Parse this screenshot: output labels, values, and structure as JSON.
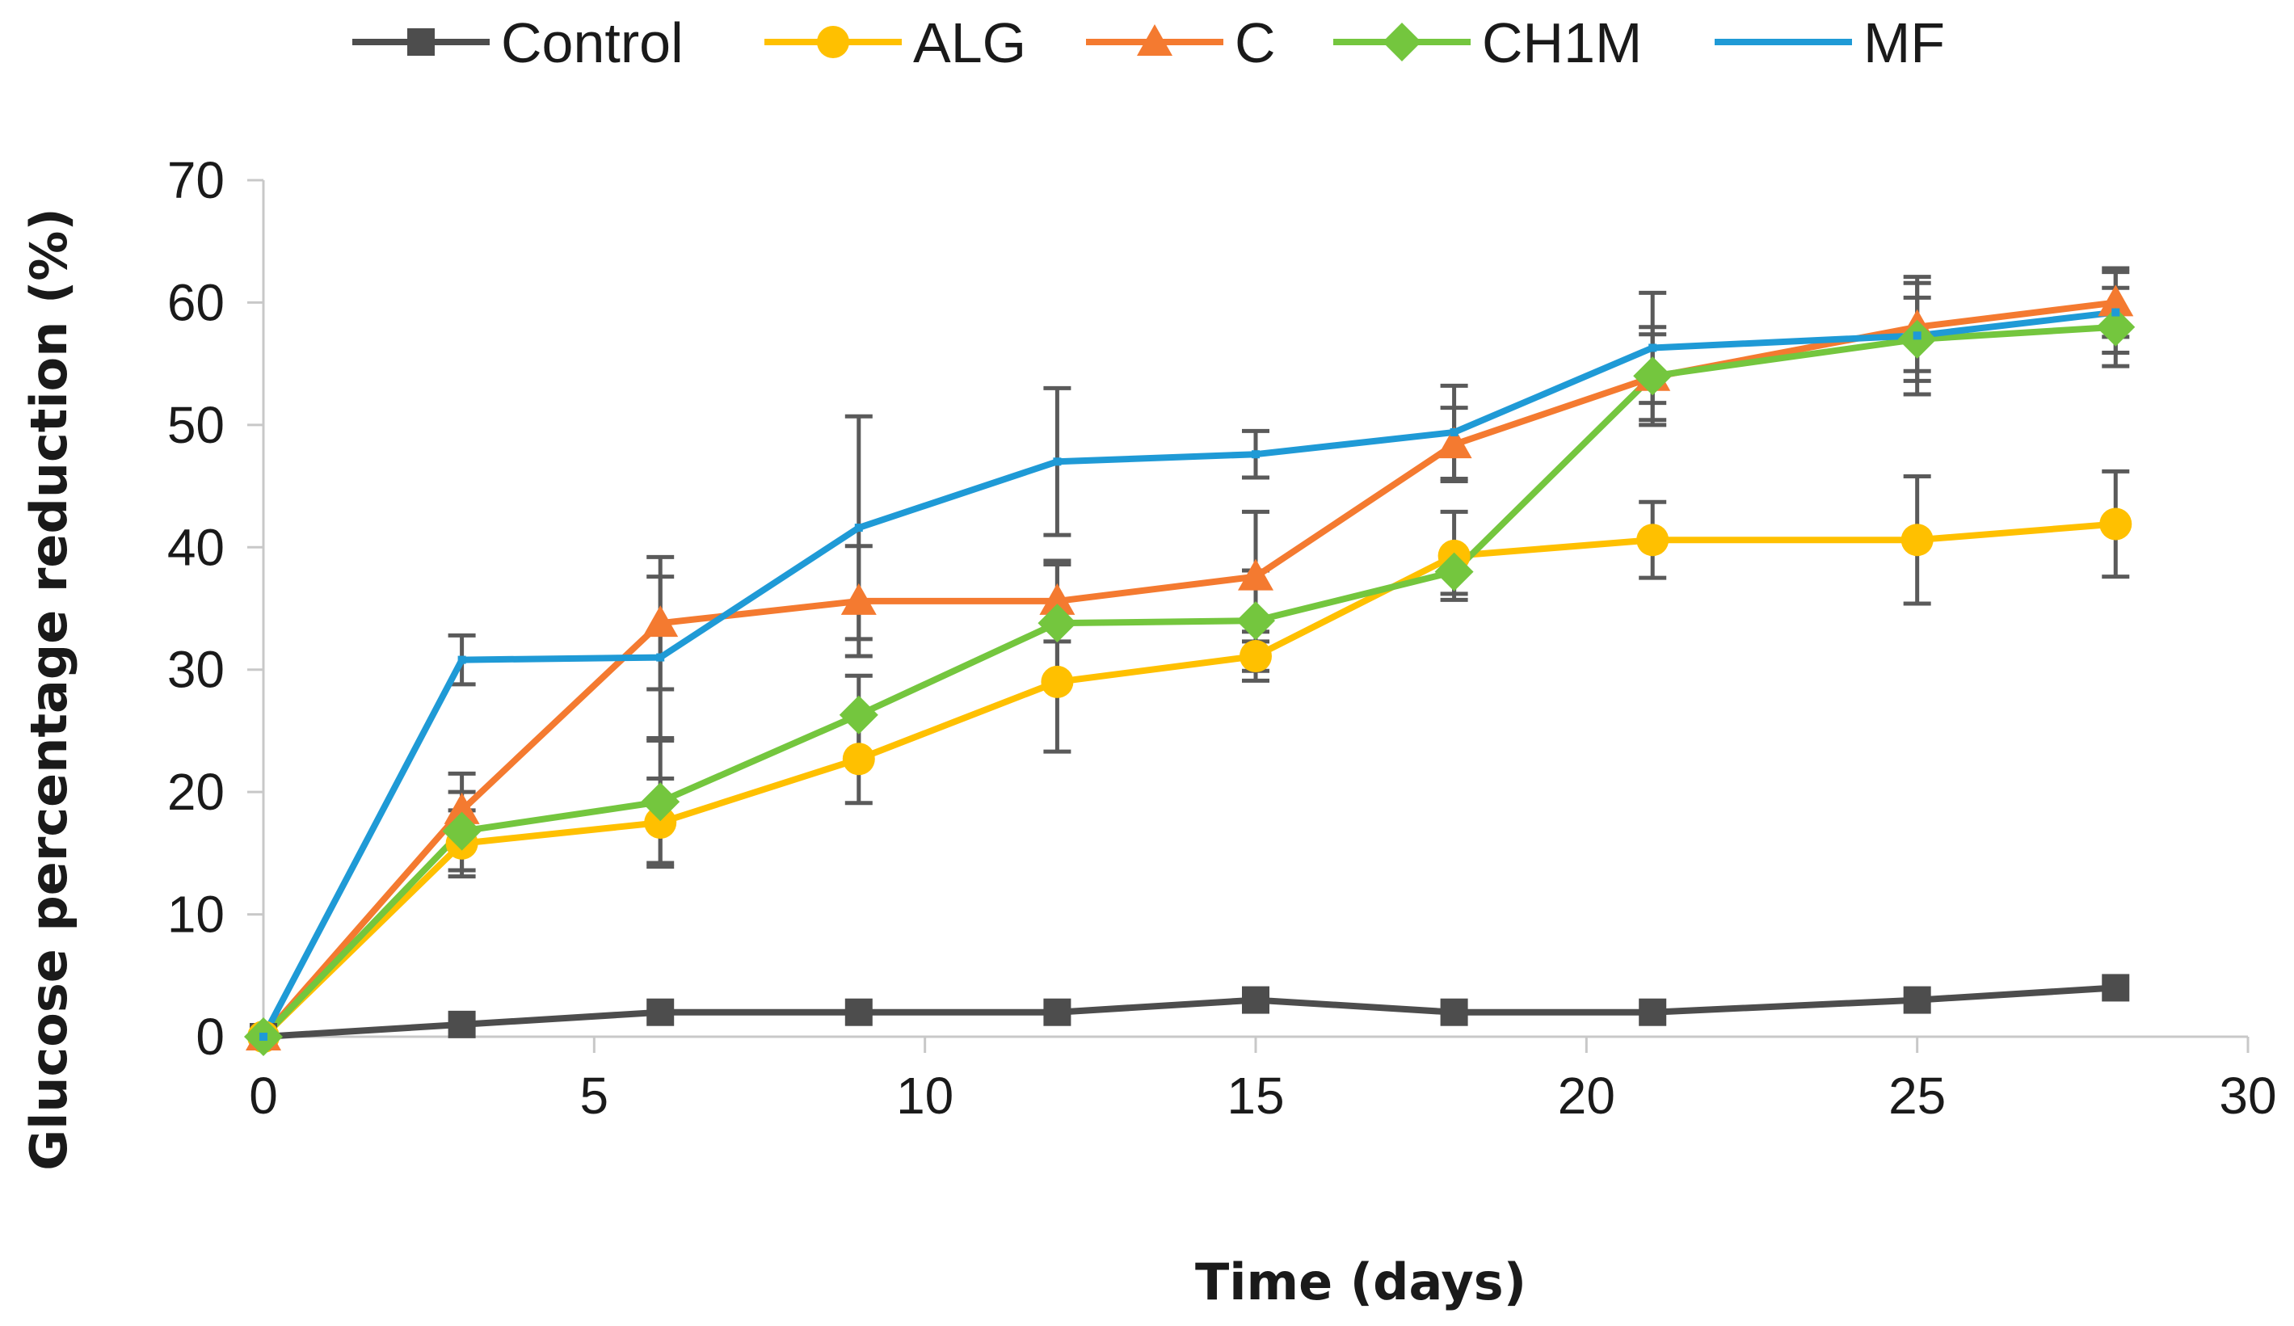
{
  "chart_data": {
    "type": "line",
    "title": "",
    "xlabel": "Time (days)",
    "ylabel": "Glucose percentage reduction (%)",
    "xlim": [
      0,
      30
    ],
    "ylim": [
      0,
      70
    ],
    "xticks": [
      0,
      5,
      10,
      15,
      20,
      25,
      30
    ],
    "yticks": [
      0,
      10,
      20,
      30,
      40,
      50,
      60,
      70
    ],
    "grid": false,
    "legend_position": "top",
    "x": [
      0,
      3,
      6,
      9,
      12,
      15,
      18,
      21,
      25,
      28
    ],
    "series": [
      {
        "name": "Control",
        "color": "#4d4d4d",
        "marker": "square",
        "values": [
          0,
          1,
          2,
          2,
          2,
          3,
          2,
          2,
          3,
          4
        ],
        "errors": [
          0,
          0,
          0,
          0,
          0,
          0,
          0,
          0,
          0,
          0
        ]
      },
      {
        "name": "ALG",
        "color": "#ffc000",
        "marker": "circle",
        "values": [
          0,
          15.8,
          17.5,
          22.7,
          29,
          31.1,
          39.3,
          40.6,
          40.6,
          41.9
        ],
        "errors": [
          0,
          2.7,
          3.6,
          3.6,
          5.7,
          2,
          3.6,
          3.1,
          5.2,
          4.3
        ]
      },
      {
        "name": "C",
        "color": "#f47a30",
        "marker": "triangle",
        "values": [
          0,
          18.5,
          33.8,
          35.6,
          35.6,
          37.6,
          48.4,
          53.9,
          58,
          60
        ],
        "errors": [
          0,
          3,
          5.4,
          4.5,
          3.3,
          5.3,
          3,
          3.5,
          3.6,
          2.8
        ]
      },
      {
        "name": "CH1M",
        "color": "#74c63e",
        "marker": "diamond",
        "values": [
          0,
          16.8,
          19.2,
          26.3,
          33.8,
          34,
          38,
          54,
          57,
          58
        ],
        "errors": [
          0,
          3.2,
          5,
          3.2,
          4.8,
          4.1,
          1.8,
          4,
          3.4,
          3.2
        ]
      },
      {
        "name": "MF",
        "color": "#1f9ad6",
        "marker": "line",
        "values": [
          0,
          30.8,
          31,
          41.6,
          47,
          47.6,
          49.4,
          56.3,
          57.3,
          59.2
        ],
        "errors": [
          0,
          2,
          6.6,
          9.1,
          6,
          1.9,
          3.8,
          4.5,
          4.8,
          3.3
        ]
      }
    ]
  }
}
